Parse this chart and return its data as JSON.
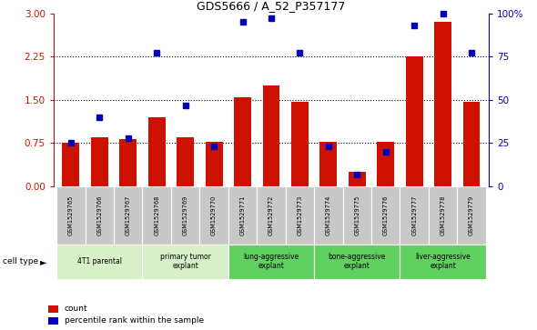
{
  "title": "GDS5666 / A_52_P357177",
  "samples": [
    "GSM1529765",
    "GSM1529766",
    "GSM1529767",
    "GSM1529768",
    "GSM1529769",
    "GSM1529770",
    "GSM1529771",
    "GSM1529772",
    "GSM1529773",
    "GSM1529774",
    "GSM1529775",
    "GSM1529776",
    "GSM1529777",
    "GSM1529778",
    "GSM1529779"
  ],
  "bar_values": [
    0.75,
    0.85,
    0.82,
    1.2,
    0.85,
    0.78,
    1.55,
    1.75,
    1.47,
    0.77,
    0.25,
    0.78,
    2.25,
    2.85,
    1.47
  ],
  "dot_values": [
    25,
    40,
    28,
    77,
    47,
    23,
    95,
    97,
    77,
    23,
    7,
    20,
    93,
    100,
    77
  ],
  "cell_types": [
    {
      "label": "4T1 parental",
      "start": 0,
      "end": 2,
      "color": "#d8f0c8"
    },
    {
      "label": "primary tumor\nexplant",
      "start": 3,
      "end": 5,
      "color": "#d8f0c8"
    },
    {
      "label": "lung-aggressive\nexplant",
      "start": 6,
      "end": 8,
      "color": "#60d060"
    },
    {
      "label": "bone-aggressive\nexplant",
      "start": 9,
      "end": 11,
      "color": "#60d060"
    },
    {
      "label": "liver-aggressive\nexplant",
      "start": 12,
      "end": 14,
      "color": "#60d060"
    }
  ],
  "bar_color": "#cc1100",
  "dot_color": "#0000bb",
  "left_ylim": [
    0,
    3
  ],
  "right_ylim": [
    0,
    100
  ],
  "left_yticks": [
    0,
    0.75,
    1.5,
    2.25,
    3
  ],
  "right_yticks": [
    0,
    25,
    50,
    75,
    100
  ],
  "right_yticklabels": [
    "0",
    "25",
    "50",
    "75",
    "100%"
  ],
  "grid_lines": [
    0.75,
    1.5,
    2.25
  ],
  "sample_row_color": "#c8c8c8",
  "bg_color": "#ffffff"
}
